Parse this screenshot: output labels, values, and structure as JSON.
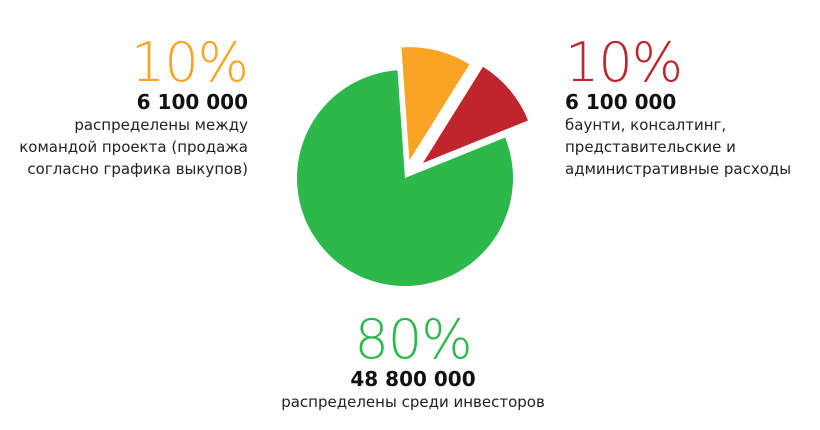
{
  "chart_data": {
    "type": "pie",
    "title": "",
    "slices": [
      {
        "percent_label": "10%",
        "percent": 10,
        "amount": "6 100 000",
        "description": "распределены между командой проекта (продажа согласно графика выкупов)",
        "description_lines": [
          "распределены между",
          "командой проекта (продажа",
          "согласно графика выкупов)"
        ],
        "color": "#F9A523",
        "exploded": true
      },
      {
        "percent_label": "10%",
        "percent": 10,
        "amount": "6 100 000",
        "description": "баунти, консалтинг, представительские и административные расходы",
        "description_lines": [
          "баунти, консалтинг,",
          "представительские и",
          "административные расходы"
        ],
        "color": "#C0242C",
        "exploded": true
      },
      {
        "percent_label": "80%",
        "percent": 80,
        "amount": "48 800 000",
        "description": "распределены среди инвесторов",
        "description_lines": [
          "распределены среди инвесторов"
        ],
        "color": "#2DB84B",
        "exploded": false
      }
    ]
  }
}
